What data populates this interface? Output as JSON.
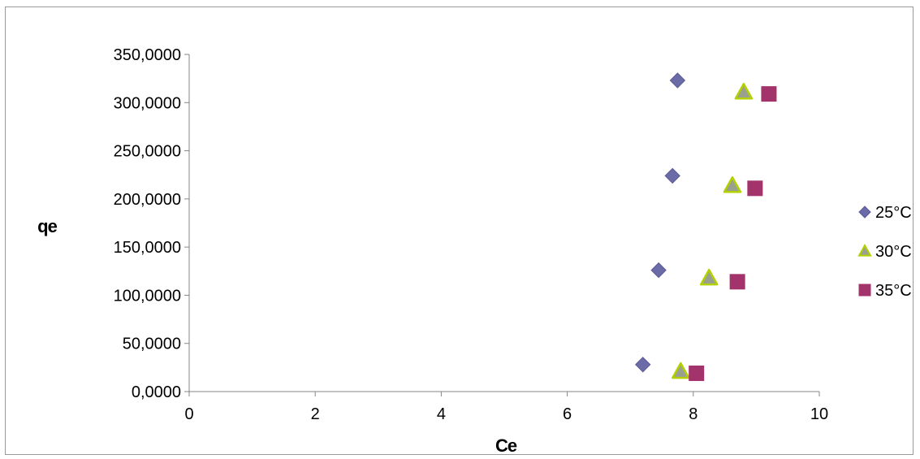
{
  "chart_data": {
    "type": "scatter",
    "xlabel": "Ce",
    "ylabel": "qe",
    "xlim": [
      0,
      10
    ],
    "ylim": [
      0,
      350
    ],
    "x_ticks": [
      0,
      2,
      4,
      6,
      8,
      10
    ],
    "x_tick_labels": [
      "0",
      "2",
      "4",
      "6",
      "8",
      "10"
    ],
    "y_ticks": [
      0,
      50,
      100,
      150,
      200,
      250,
      300,
      350
    ],
    "y_tick_labels": [
      "0,0000",
      "50,0000",
      "100,0000",
      "150,0000",
      "200,0000",
      "250,0000",
      "300,0000",
      "350,0000"
    ],
    "grid": false,
    "legend_position": "right",
    "series": [
      {
        "name": "25°C",
        "marker": "diamond",
        "color": "#6b6ba8",
        "stroke": "#5a5a96",
        "points": [
          [
            7.2,
            28
          ],
          [
            7.45,
            126
          ],
          [
            7.67,
            224
          ],
          [
            7.75,
            323
          ]
        ]
      },
      {
        "name": "30°C",
        "marker": "triangle",
        "color": "#9aa090",
        "stroke": "#b5d000",
        "points": [
          [
            7.8,
            21
          ],
          [
            8.25,
            118
          ],
          [
            8.62,
            214
          ],
          [
            8.8,
            311
          ]
        ]
      },
      {
        "name": "35°C",
        "marker": "square",
        "color": "#a3336b",
        "stroke": "#a3336b",
        "points": [
          [
            8.05,
            19
          ],
          [
            8.7,
            114
          ],
          [
            8.98,
            211
          ],
          [
            9.2,
            309
          ]
        ]
      }
    ]
  }
}
